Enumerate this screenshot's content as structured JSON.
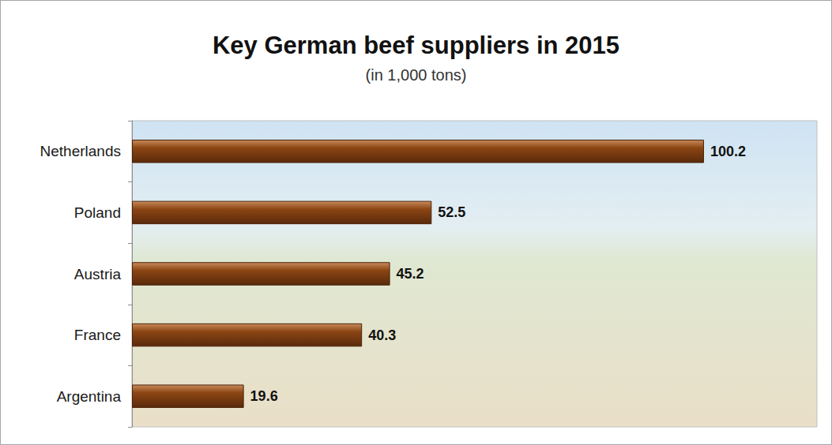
{
  "chart_data": {
    "type": "bar",
    "title": "Key German beef suppliers in 2015",
    "subtitle": "(in 1,000 tons)",
    "categories": [
      "Netherlands",
      "Poland",
      "Austria",
      "France",
      "Argentina"
    ],
    "values": [
      100.2,
      52.5,
      45.2,
      40.3,
      19.6
    ],
    "color": "#8b4513",
    "orientation": "horizontal",
    "xlim": [
      0,
      120
    ],
    "data_labels": true,
    "tick_labels": "y",
    "grid": false
  }
}
